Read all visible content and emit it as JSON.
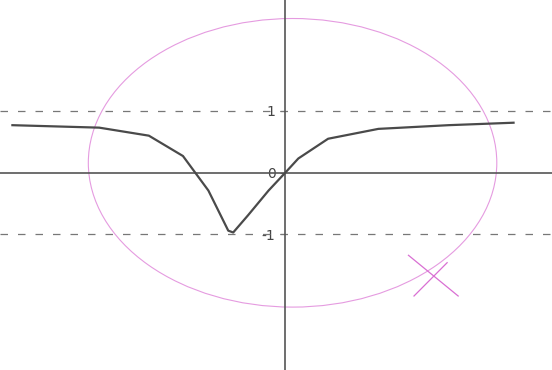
{
  "chart_data": {
    "type": "line",
    "x": [
      -4.4,
      -3.0,
      -2.2,
      -1.65,
      -1.24,
      -0.92,
      -0.84,
      -0.6,
      -0.27,
      0,
      0.21,
      0.69,
      1.5,
      2.63,
      3.68
    ],
    "values": [
      0.77,
      0.73,
      0.6,
      0.27,
      -0.29,
      -0.94,
      -0.97,
      -0.69,
      -0.29,
      0,
      0.23,
      0.55,
      0.71,
      0.77,
      0.81
    ],
    "color": "#4a4a4a",
    "line_style": "solid",
    "dashed_lines": [
      1,
      -1
    ],
    "xlim": [
      -4.6,
      4.3
    ],
    "ylim": [
      -3.2,
      2.8
    ],
    "yticks": [
      -1,
      0,
      1
    ],
    "tick_labels": "y"
  }
}
